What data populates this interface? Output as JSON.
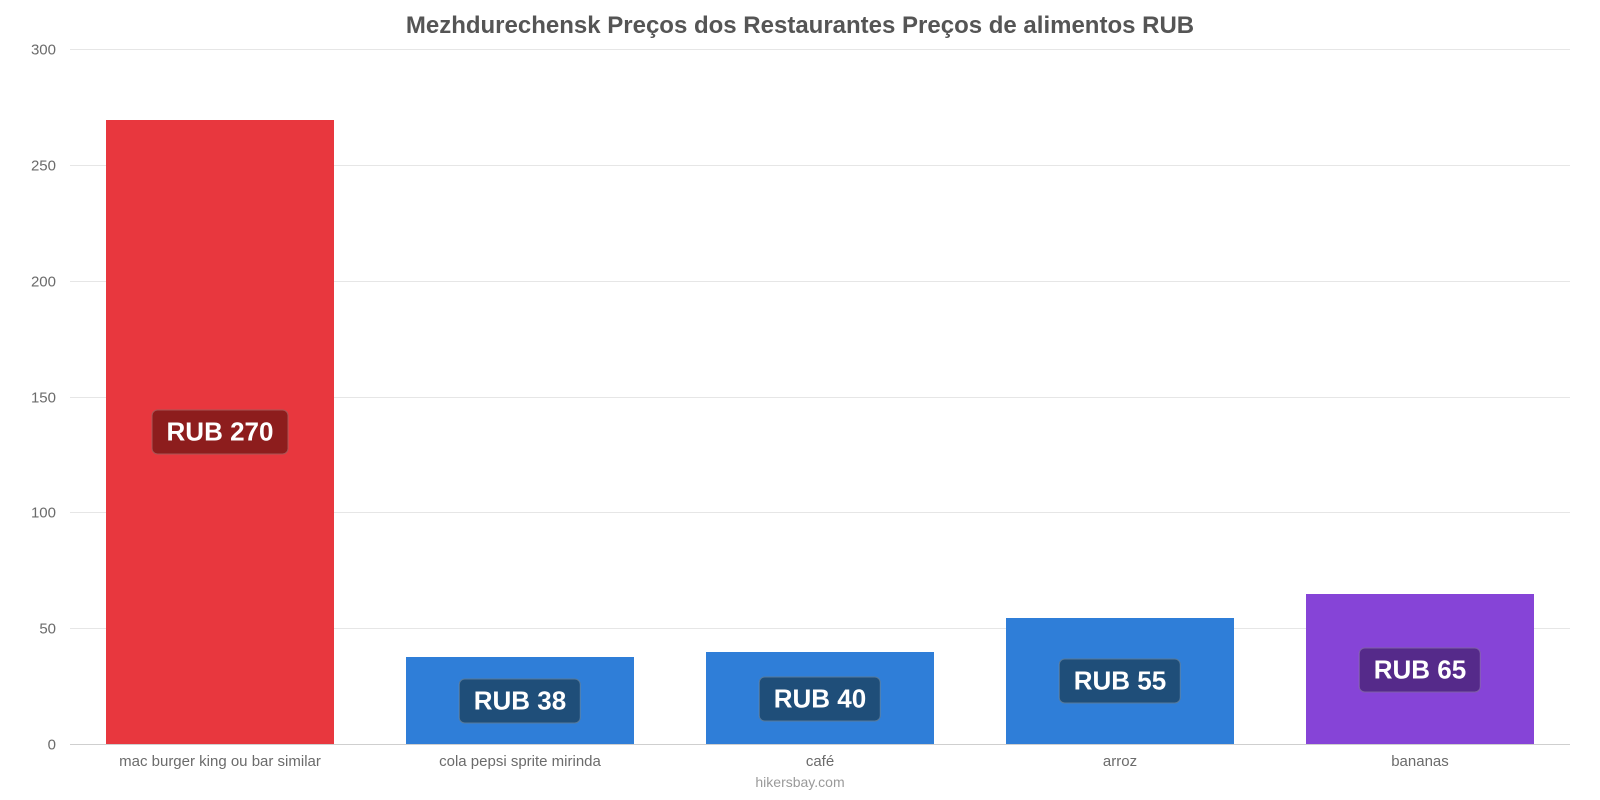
{
  "chart": {
    "type": "bar",
    "title": "Mezhdurechensk Preços dos Restaurantes Preços de alimentos RUB",
    "title_fontsize": 24,
    "title_color": "#555555",
    "background_color": "#ffffff",
    "grid_color": "#e6e6e6",
    "axis_font_color": "#6b6b6b",
    "axis_fontsize": 15,
    "ylim": [
      0,
      300
    ],
    "ytick_step": 50,
    "yticks": [
      0,
      50,
      100,
      150,
      200,
      250,
      300
    ],
    "bar_width_pct": 76,
    "value_prefix": "RUB ",
    "value_label_fontsize": 26,
    "categories": [
      "mac burger king ou bar similar",
      "cola pepsi sprite mirinda",
      "café",
      "arroz",
      "bananas"
    ],
    "values": [
      270,
      38,
      40,
      55,
      65
    ],
    "bar_colors": [
      "#e8373e",
      "#2f7ed8",
      "#2f7ed8",
      "#2f7ed8",
      "#8644d7"
    ],
    "badge_colors": [
      "#8d1d1d",
      "#1f4e79",
      "#1f4e79",
      "#1f4e79",
      "#552a8a"
    ],
    "footer": "hikersbay.com",
    "footer_color": "#9a9a9a",
    "footer_fontsize": 14
  }
}
